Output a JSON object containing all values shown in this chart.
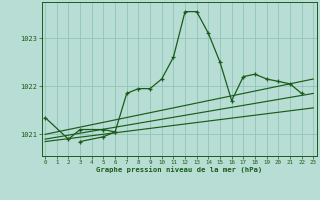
{
  "title": "Graphe pression niveau de la mer (hPa)",
  "bg_color": "#b8ddd4",
  "plot_bg_color": "#b8ddd4",
  "grid_color": "#88bfb2",
  "line_color": "#1a5c1a",
  "hours": [
    0,
    1,
    2,
    3,
    4,
    5,
    6,
    7,
    8,
    9,
    10,
    11,
    12,
    13,
    14,
    15,
    16,
    17,
    18,
    19,
    20,
    21,
    22,
    23
  ],
  "pressure_main": [
    1021.35,
    null,
    1020.9,
    1021.1,
    null,
    1021.1,
    1021.05,
    1021.85,
    1021.95,
    1021.95,
    1022.15,
    1022.6,
    1023.55,
    1023.55,
    1023.1,
    1022.5,
    1021.7,
    1022.2,
    1022.25,
    1022.15,
    1022.1,
    1022.05,
    1021.85,
    null
  ],
  "pressure_line2": [
    null,
    null,
    null,
    1020.85,
    null,
    1020.95,
    1021.05,
    null,
    null,
    null,
    null,
    null,
    null,
    null,
    null,
    null,
    null,
    null,
    null,
    null,
    null,
    null,
    null,
    null
  ],
  "straight_lines": [
    {
      "x": [
        0,
        23
      ],
      "y": [
        1021.0,
        1022.15
      ]
    },
    {
      "x": [
        0,
        23
      ],
      "y": [
        1020.9,
        1021.85
      ]
    },
    {
      "x": [
        0,
        23
      ],
      "y": [
        1020.85,
        1021.55
      ]
    }
  ],
  "ylim": [
    1020.55,
    1023.75
  ],
  "yticks": [
    1021,
    1022,
    1023
  ],
  "xlim": [
    -0.3,
    23.3
  ],
  "xticks": [
    0,
    1,
    2,
    3,
    4,
    5,
    6,
    7,
    8,
    9,
    10,
    11,
    12,
    13,
    14,
    15,
    16,
    17,
    18,
    19,
    20,
    21,
    22,
    23
  ]
}
